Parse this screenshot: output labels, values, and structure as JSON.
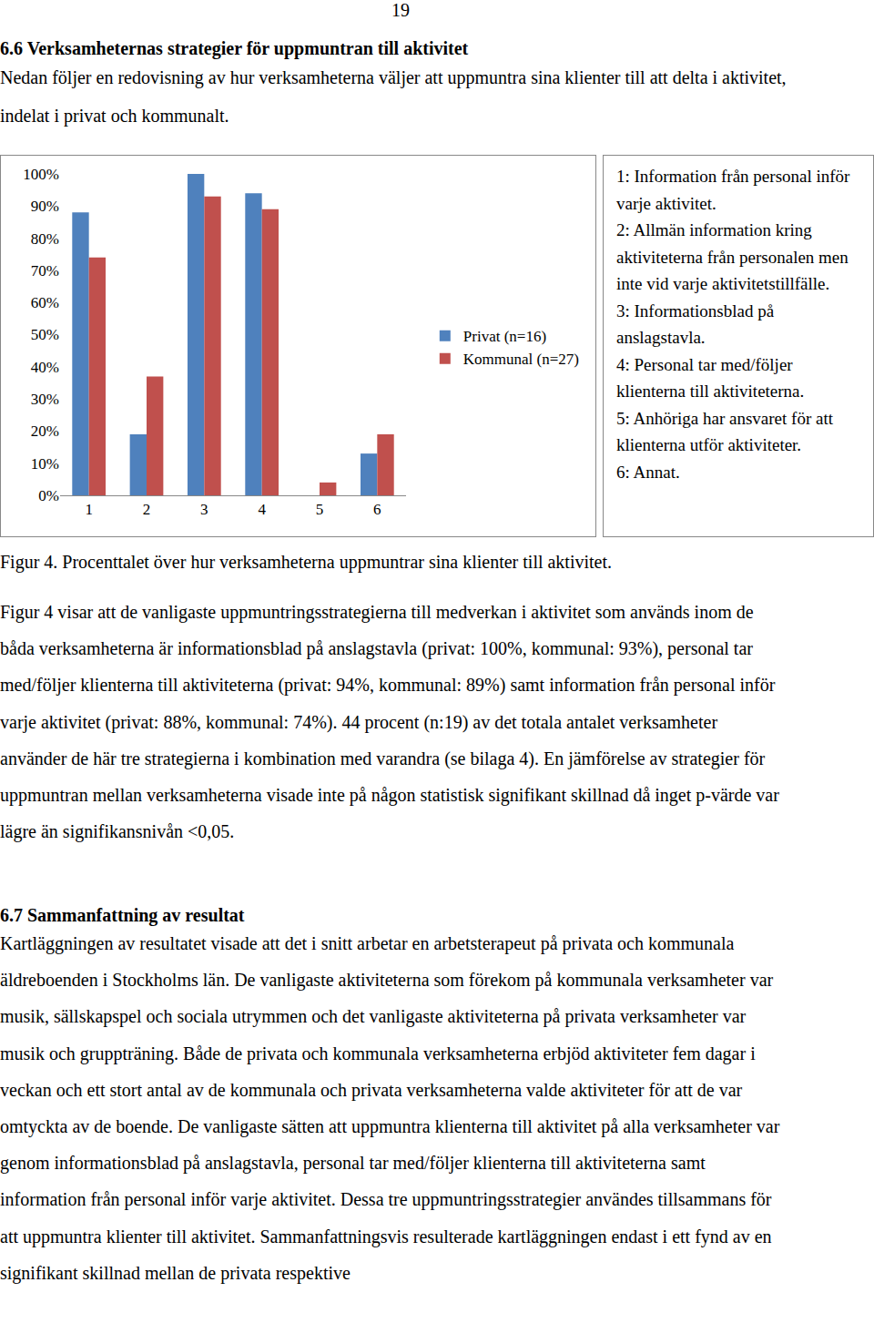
{
  "page_number": "19",
  "section_heading": "6.6 Verksamheternas strategier för uppmuntran till aktivitet",
  "intro": "Nedan följer en redovisning av hur verksamheterna väljer att uppmuntra sina klienter till att delta i aktivitet, indelat i privat och kommunalt.",
  "chart_data": {
    "type": "bar",
    "categories": [
      "1",
      "2",
      "3",
      "4",
      "5",
      "6"
    ],
    "series": [
      {
        "name": "Privat (n=16)",
        "color": "#4f81bd",
        "values": [
          88,
          19,
          100,
          94,
          0,
          13
        ]
      },
      {
        "name": "Kommunal (n=27)",
        "color": "#c0504d",
        "values": [
          74,
          37,
          93,
          89,
          4,
          19
        ]
      }
    ],
    "ylim": [
      0,
      100
    ],
    "yticks": [
      {
        "value": 0,
        "label": "0%"
      },
      {
        "value": 10,
        "label": "10%"
      },
      {
        "value": 20,
        "label": "20%"
      },
      {
        "value": 30,
        "label": "30%"
      },
      {
        "value": 40,
        "label": "40%"
      },
      {
        "value": 50,
        "label": "50%"
      },
      {
        "value": 60,
        "label": "60%"
      },
      {
        "value": 70,
        "label": "70%"
      },
      {
        "value": 80,
        "label": "80%"
      },
      {
        "value": 90,
        "label": "90%"
      },
      {
        "value": 100,
        "label": "100%"
      }
    ],
    "grid": false,
    "legend": "right"
  },
  "chart_key": [
    "1: Information från personal inför varje aktivitet.",
    "2: Allmän information kring aktiviteterna från personalen men inte vid varje aktivitetstillfälle.",
    "3: Informationsblad på anslagstavla.",
    "4: Personal tar med/följer klienterna till aktiviteterna.",
    "5: Anhöriga har ansvaret för att klienterna utför aktiviteter.",
    "6: Annat."
  ],
  "caption": "Figur 4. Procenttalet över hur verksamheterna uppmuntrar sina klienter till aktivitet.",
  "paragraph_2": "Figur 4 visar att de vanligaste uppmuntringsstrategierna till medverkan i aktivitet som används inom de båda verksamheterna är informationsblad på anslagstavla (privat: 100%, kommunal: 93%), personal tar med/följer klienterna till aktiviteterna (privat: 94%, kommunal: 89%) samt information från personal inför varje aktivitet (privat: 88%, kommunal: 74%). 44 procent (n:19) av det totala antalet verksamheter använder de här tre strategierna i kombination med varandra (se bilaga 4). En jämförelse av strategier för uppmuntran mellan verksamheterna visade inte på någon statistisk signifikant skillnad då inget p-värde var lägre än signifikansnivån <0,05.",
  "summary_heading": "6.7 Sammanfattning av resultat",
  "paragraph_3": "Kartläggningen av resultatet visade att det i snitt arbetar en arbetsterapeut på privata och kommunala äldreboenden i Stockholms län. De vanligaste aktiviteterna som förekom på kommunala verksamheter var musik, sällskapspel och sociala utrymmen och det vanligaste aktiviteterna på privata verksamheter var musik och gruppträning. Både de privata och kommunala verksamheterna erbjöd aktiviteter fem dagar i veckan och ett stort antal av de kommunala och privata verksamheterna valde aktiviteter för att de var omtyckta av de boende. De vanligaste sätten att uppmuntra klienterna till aktivitet på alla verksamheter var genom informationsblad på anslagstavla, personal tar med/följer klienterna till aktiviteterna samt information från personal inför varje aktivitet. Dessa tre uppmuntringsstrategier användes tillsammans för att uppmuntra klienter till aktivitet. Sammanfattningsvis resulterade kartläggningen endast i ett fynd av en signifikant skillnad mellan de privata respektive"
}
